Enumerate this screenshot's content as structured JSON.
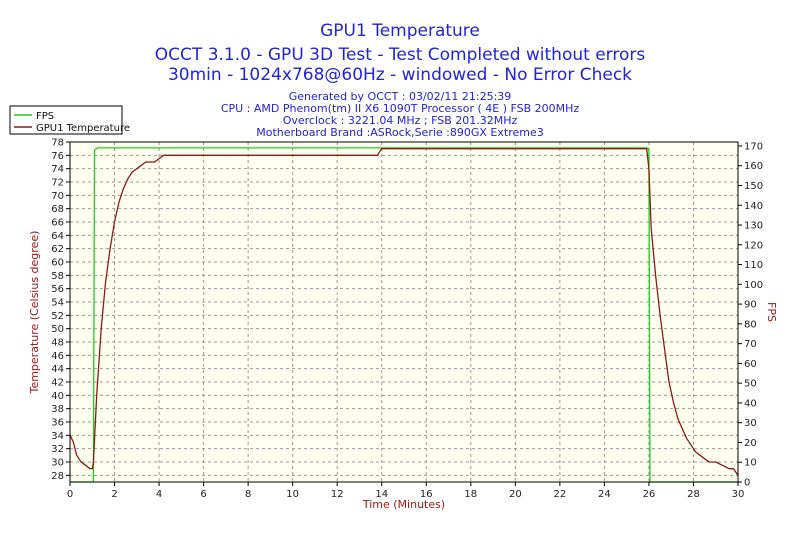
{
  "chart_data": {
    "type": "line",
    "title": "GPU1 Temperature",
    "subtitle_lines": [
      "OCCT 3.1.0 - GPU 3D Test - Test Completed without errors",
      "30min - 1024x768@60Hz - windowed - No Error Check"
    ],
    "info_lines": [
      "Generated by OCCT : 03/02/11 21:25:39",
      "CPU : AMD Phenom(tm) II X6 1090T Processor ( 4E ) FSB 200MHz",
      "Overclock : 3221.04 MHz ; FSB 201.32MHz",
      "Motherboard Brand :ASRock,Serie :890GX Extreme3"
    ],
    "xlabel": "Time (Minutes)",
    "ylabel_left": "Temperature (Celsius degree)",
    "ylabel_right": "FPS",
    "xlim": [
      0,
      30
    ],
    "ylim_left": [
      27,
      78
    ],
    "ylim_right": [
      0,
      172
    ],
    "x_ticks": [
      0,
      2,
      4,
      6,
      8,
      10,
      12,
      14,
      16,
      18,
      20,
      22,
      24,
      26,
      28,
      30
    ],
    "y_left_ticks": [
      28,
      30,
      32,
      34,
      36,
      38,
      40,
      42,
      44,
      46,
      48,
      50,
      52,
      54,
      56,
      58,
      60,
      62,
      64,
      66,
      68,
      70,
      72,
      74,
      76,
      78
    ],
    "y_right_ticks": [
      0,
      10,
      20,
      30,
      40,
      50,
      60,
      70,
      80,
      90,
      100,
      110,
      120,
      130,
      140,
      150,
      160,
      170
    ],
    "grid": true,
    "legend_position": "top-left",
    "series": [
      {
        "name": "FPS",
        "axis": "right",
        "color": "#22cc22",
        "x": [
          0,
          1.05,
          1.1,
          1.25,
          3,
          6,
          9,
          12,
          15,
          18,
          21,
          24,
          25.95,
          26.0,
          26.05,
          30
        ],
        "y": [
          0,
          0,
          168,
          169,
          169,
          169,
          169,
          169,
          169,
          169,
          169,
          169,
          169,
          168,
          0,
          0
        ]
      },
      {
        "name": "GPU1 Temperature",
        "axis": "left",
        "color": "#8b1a1a",
        "x": [
          0,
          0.15,
          0.3,
          0.5,
          0.7,
          0.9,
          1.0,
          1.05,
          1.2,
          1.4,
          1.6,
          1.8,
          2.0,
          2.2,
          2.4,
          2.6,
          2.8,
          3.0,
          3.2,
          3.4,
          3.6,
          3.8,
          4.2,
          4.6,
          5.0,
          6.0,
          8.0,
          10.0,
          12.0,
          13.8,
          14.0,
          16.0,
          18.0,
          20.0,
          22.0,
          24.0,
          25.9,
          26.0,
          26.1,
          26.3,
          26.5,
          26.7,
          26.9,
          27.1,
          27.3,
          27.5,
          27.7,
          27.9,
          28.1,
          28.3,
          28.5,
          28.7,
          29.0,
          29.3,
          29.6,
          29.8,
          30
        ],
        "y": [
          34,
          33,
          31,
          30,
          29.5,
          29,
          29,
          30,
          40,
          50,
          57,
          62,
          66,
          69,
          71,
          72.5,
          73.5,
          74,
          74.5,
          75,
          75,
          75,
          76,
          76,
          76,
          76,
          76,
          76,
          76,
          76,
          77,
          77,
          77,
          77,
          77,
          77,
          77,
          74,
          65,
          58,
          52,
          47,
          42,
          39,
          36.5,
          35,
          33.5,
          32.5,
          31.5,
          31,
          30.5,
          30,
          30,
          29.5,
          29,
          29,
          28
        ]
      }
    ]
  }
}
